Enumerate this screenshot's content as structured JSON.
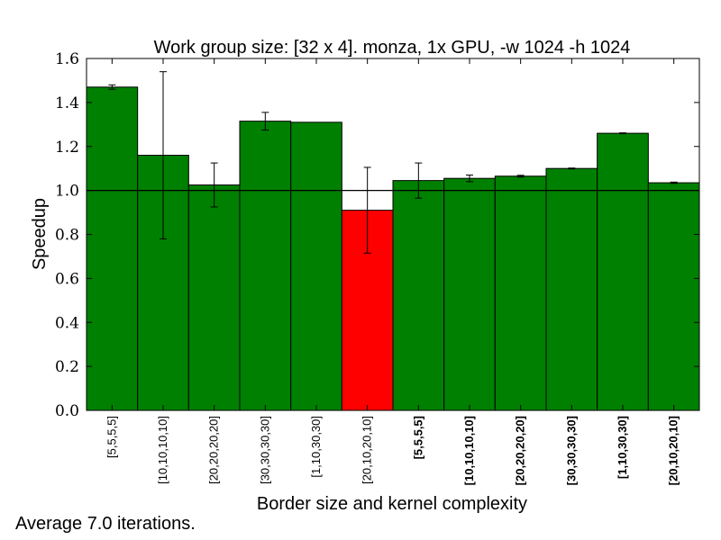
{
  "chart_data": {
    "type": "bar",
    "title": "Work group size: [32 x 4]. monza, 1x GPU, -w 1024 -h 1024",
    "xlabel": "Border size and kernel complexity",
    "ylabel": "Speedup",
    "ylim": [
      0.0,
      1.6
    ],
    "yticks": [
      "0.0",
      "0.2",
      "0.4",
      "0.6",
      "0.8",
      "1.0",
      "1.2",
      "1.4",
      "1.6"
    ],
    "reference_line": 1.0,
    "categories": [
      "[5,5,5,5]",
      "[10,10,10,10]",
      "[20,20,20,20]",
      "[30,30,30,30]",
      "[1,10,30,30]",
      "[20,10,20,10]",
      "[5,5,5,5]",
      "[10,10,10,10]",
      "[20,20,20,20]",
      "[30,30,30,30]",
      "[1,10,30,30]",
      "[20,10,20,10]"
    ],
    "bold_categories": [
      false,
      false,
      false,
      false,
      false,
      false,
      true,
      true,
      true,
      true,
      true,
      true
    ],
    "values": [
      1.47,
      1.16,
      1.025,
      1.315,
      1.31,
      0.91,
      1.045,
      1.055,
      1.065,
      1.1,
      1.26,
      1.035
    ],
    "errors": [
      0.01,
      0.38,
      0.1,
      0.04,
      0.0,
      0.195,
      0.08,
      0.015,
      0.004,
      0.002,
      0.002,
      0.003
    ],
    "colors": [
      "#008000",
      "#008000",
      "#008000",
      "#008000",
      "#008000",
      "#ff0000",
      "#008000",
      "#008000",
      "#008000",
      "#008000",
      "#008000",
      "#008000"
    ],
    "grid": false,
    "footnote": "Average 7.0 iterations."
  }
}
